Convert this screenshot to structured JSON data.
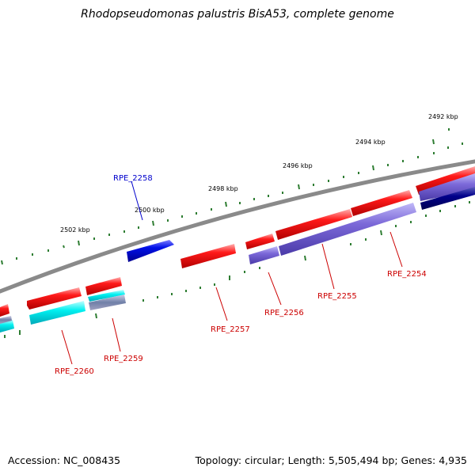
{
  "title": "Rhodopseudomonas palustris BisA53, complete genome",
  "footer": {
    "accession": "Accession: NC_008435",
    "topology": "Topology: circular; Length: 5,505,494 bp; Genes: 4,935"
  },
  "scale_labels": [
    "2492 kbp",
    "2494 kbp",
    "2496 kbp",
    "2498 kbp",
    "2500 kbp",
    "2502 kbp"
  ],
  "gene_labels": [
    "RPE_2258",
    "RPE_2254",
    "RPE_2255",
    "RPE_2256",
    "RPE_2257",
    "RPE_2259",
    "RPE_2260"
  ],
  "colors": {
    "backbone": "#8a8a8a",
    "scale_ticks": "#2e7d32",
    "gene_red": "#ff1010",
    "gene_blue": "#0010e0",
    "feature_purple": "#7b68d8",
    "feature_cyan": "#00f0f0",
    "feature_navy": "#00008b",
    "label_red": "#cc0000",
    "label_blue": "#0000cc"
  }
}
